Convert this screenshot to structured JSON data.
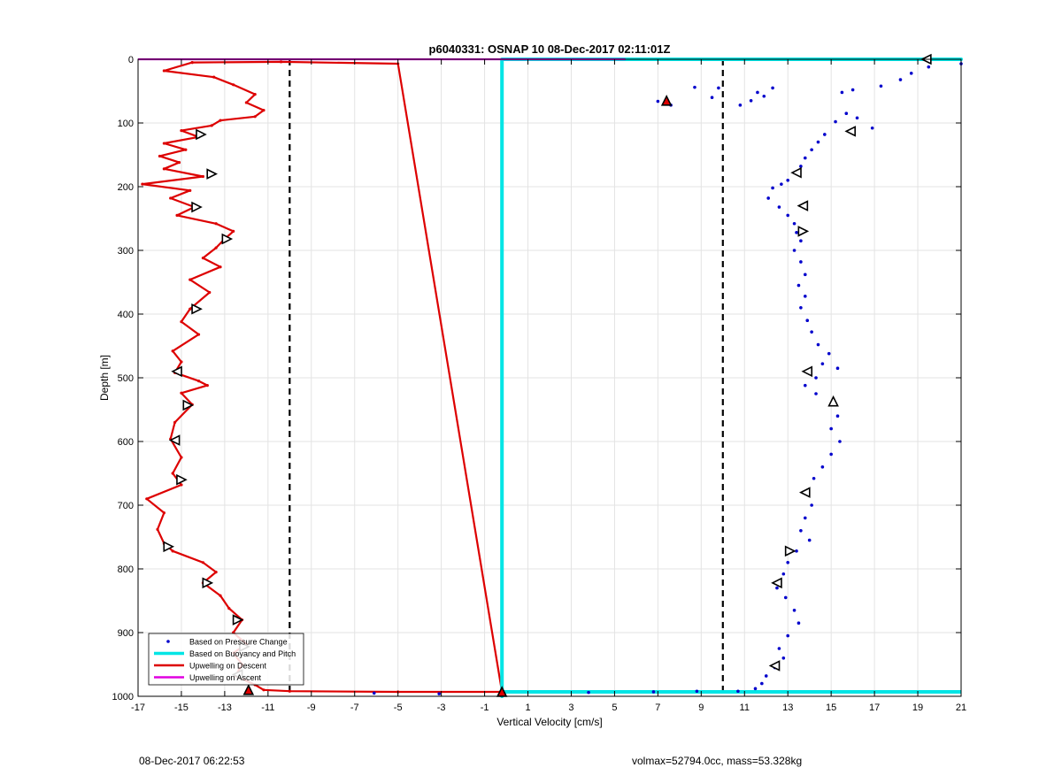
{
  "chart_data": {
    "type": "scatter",
    "title": "p6040331: OSNAP 10 08-Dec-2017 02:11:01Z",
    "xlabel": "Vertical Velocity [cm/s]",
    "ylabel": "Depth [m]",
    "xlim": [
      -17,
      21
    ],
    "ylim": [
      0,
      1000
    ],
    "y_reversed": true,
    "grid": true,
    "legend_position": "bottom-left",
    "x_ticks": [
      "-17",
      "-15",
      "-13",
      "-11",
      "-9",
      "-7",
      "-5",
      "-3",
      "-1",
      "1",
      "3",
      "5",
      "7",
      "9",
      "11",
      "13",
      "15",
      "17",
      "19",
      "21"
    ],
    "y_ticks": [
      "0",
      "100",
      "200",
      "300",
      "400",
      "500",
      "600",
      "700",
      "800",
      "900",
      "1000"
    ],
    "reference_lines": [
      {
        "x": -10,
        "style": "dashed",
        "color": "#000000"
      },
      {
        "x": 10,
        "style": "dashed",
        "color": "#000000"
      }
    ],
    "series": [
      {
        "name": "Based on Pressure Change",
        "kind": "points",
        "color": "#0000cc",
        "points": [
          [
            21.0,
            7
          ],
          [
            19.5,
            12
          ],
          [
            18.7,
            22
          ],
          [
            18.2,
            32
          ],
          [
            17.3,
            42
          ],
          [
            16.0,
            48
          ],
          [
            15.5,
            52
          ],
          [
            12.3,
            45
          ],
          [
            11.6,
            52
          ],
          [
            11.9,
            58
          ],
          [
            11.3,
            65
          ],
          [
            10.8,
            72
          ],
          [
            9.8,
            45
          ],
          [
            9.5,
            60
          ],
          [
            8.7,
            44
          ],
          [
            7.6,
            72
          ],
          [
            7.0,
            66
          ],
          [
            16.9,
            108
          ],
          [
            16.2,
            92
          ],
          [
            15.7,
            85
          ],
          [
            15.2,
            98
          ],
          [
            14.7,
            118
          ],
          [
            14.4,
            130
          ],
          [
            14.1,
            142
          ],
          [
            13.8,
            155
          ],
          [
            13.6,
            168
          ],
          [
            13.3,
            178
          ],
          [
            13.0,
            190
          ],
          [
            12.7,
            196
          ],
          [
            12.3,
            202
          ],
          [
            12.1,
            218
          ],
          [
            12.6,
            232
          ],
          [
            13.0,
            245
          ],
          [
            13.3,
            258
          ],
          [
            13.4,
            272
          ],
          [
            13.6,
            285
          ],
          [
            13.3,
            300
          ],
          [
            13.6,
            318
          ],
          [
            13.8,
            338
          ],
          [
            13.5,
            355
          ],
          [
            13.8,
            372
          ],
          [
            13.6,
            390
          ],
          [
            13.9,
            410
          ],
          [
            14.1,
            428
          ],
          [
            14.4,
            448
          ],
          [
            14.9,
            462
          ],
          [
            14.6,
            478
          ],
          [
            15.3,
            485
          ],
          [
            14.3,
            500
          ],
          [
            13.8,
            512
          ],
          [
            14.3,
            525
          ],
          [
            15.1,
            540
          ],
          [
            15.3,
            560
          ],
          [
            15.0,
            580
          ],
          [
            15.4,
            600
          ],
          [
            15.0,
            620
          ],
          [
            14.6,
            640
          ],
          [
            14.2,
            658
          ],
          [
            13.9,
            680
          ],
          [
            14.1,
            700
          ],
          [
            13.8,
            720
          ],
          [
            13.6,
            740
          ],
          [
            14.0,
            755
          ],
          [
            13.4,
            772
          ],
          [
            13.0,
            790
          ],
          [
            12.8,
            808
          ],
          [
            12.5,
            830
          ],
          [
            12.9,
            845
          ],
          [
            13.3,
            865
          ],
          [
            13.5,
            885
          ],
          [
            13.0,
            905
          ],
          [
            12.6,
            925
          ],
          [
            12.8,
            940
          ],
          [
            12.4,
            955
          ],
          [
            12.0,
            968
          ],
          [
            11.8,
            980
          ],
          [
            11.5,
            988
          ],
          [
            10.7,
            992
          ],
          [
            8.8,
            992
          ],
          [
            6.8,
            993
          ],
          [
            3.8,
            994
          ],
          [
            -0.2,
            995
          ],
          [
            -3.1,
            996
          ],
          [
            -6.1,
            995
          ]
        ]
      },
      {
        "name": "Based on Buoyancy and Pitch",
        "kind": "line",
        "color": "#00e5e5",
        "points": [
          [
            5.5,
            0
          ],
          [
            21,
            0
          ],
          [
            -0.2,
            0
          ],
          [
            -0.2,
            1000
          ],
          [
            -0.2,
            993
          ],
          [
            21,
            993
          ]
        ]
      },
      {
        "name": "Upwelling on Descent",
        "kind": "line",
        "color": "#dd0000",
        "points": [
          [
            -14.5,
            5
          ],
          [
            -15.8,
            18
          ],
          [
            -13.5,
            28
          ],
          [
            -12.6,
            40
          ],
          [
            -11.6,
            55
          ],
          [
            -12.0,
            68
          ],
          [
            -11.2,
            80
          ],
          [
            -11.6,
            90
          ],
          [
            -13.2,
            96
          ],
          [
            -13.6,
            104
          ],
          [
            -15.0,
            112
          ],
          [
            -14.2,
            122
          ],
          [
            -15.8,
            132
          ],
          [
            -14.8,
            142
          ],
          [
            -16.0,
            152
          ],
          [
            -15.1,
            162
          ],
          [
            -15.8,
            172
          ],
          [
            -14.0,
            184
          ],
          [
            -16.8,
            196
          ],
          [
            -14.6,
            206
          ],
          [
            -15.5,
            218
          ],
          [
            -14.4,
            232
          ],
          [
            -15.2,
            245
          ],
          [
            -13.4,
            258
          ],
          [
            -12.6,
            270
          ],
          [
            -13.0,
            282
          ],
          [
            -13.4,
            296
          ],
          [
            -14.0,
            312
          ],
          [
            -13.2,
            326
          ],
          [
            -14.6,
            346
          ],
          [
            -13.7,
            366
          ],
          [
            -14.6,
            392
          ],
          [
            -15.0,
            412
          ],
          [
            -14.2,
            432
          ],
          [
            -15.4,
            458
          ],
          [
            -15.0,
            475
          ],
          [
            -15.3,
            492
          ],
          [
            -14.2,
            505
          ],
          [
            -13.8,
            512
          ],
          [
            -15.0,
            524
          ],
          [
            -14.5,
            542
          ],
          [
            -15.3,
            570
          ],
          [
            -15.5,
            596
          ],
          [
            -15.0,
            625
          ],
          [
            -15.4,
            650
          ],
          [
            -15.0,
            668
          ],
          [
            -16.6,
            690
          ],
          [
            -15.8,
            712
          ],
          [
            -16.1,
            738
          ],
          [
            -15.8,
            760
          ],
          [
            -15.4,
            772
          ],
          [
            -14.0,
            790
          ],
          [
            -13.4,
            805
          ],
          [
            -14.0,
            822
          ],
          [
            -13.2,
            842
          ],
          [
            -12.8,
            862
          ],
          [
            -12.2,
            880
          ],
          [
            -12.6,
            900
          ],
          [
            -12.0,
            918
          ],
          [
            -12.6,
            932
          ],
          [
            -12.2,
            950
          ],
          [
            -12.5,
            968
          ],
          [
            -11.6,
            982
          ],
          [
            -11.2,
            990
          ],
          [
            -10.0,
            992
          ],
          [
            -5.0,
            993
          ],
          [
            -0.2,
            993
          ],
          [
            -5.0,
            7
          ],
          [
            -10.4,
            4
          ],
          [
            -14.5,
            5
          ]
        ]
      },
      {
        "name": "Upwelling on Ascent",
        "kind": "line",
        "color": "#e000e0",
        "points": [
          [
            -17,
            0
          ],
          [
            5.5,
            0
          ]
        ]
      }
    ],
    "markers": [
      {
        "x": 19.4,
        "y": 0,
        "dir": "left"
      },
      {
        "x": 7.4,
        "y": 65,
        "dir": "up",
        "fill": "#dd0000"
      },
      {
        "x": 15.9,
        "y": 113,
        "dir": "left"
      },
      {
        "x": 13.4,
        "y": 178,
        "dir": "left"
      },
      {
        "x": 13.7,
        "y": 230,
        "dir": "left"
      },
      {
        "x": 13.7,
        "y": 270,
        "dir": "right"
      },
      {
        "x": 13.9,
        "y": 490,
        "dir": "left"
      },
      {
        "x": 15.1,
        "y": 537,
        "dir": "up"
      },
      {
        "x": 13.8,
        "y": 680,
        "dir": "left"
      },
      {
        "x": 13.1,
        "y": 772,
        "dir": "right"
      },
      {
        "x": 12.5,
        "y": 822,
        "dir": "left"
      },
      {
        "x": 12.4,
        "y": 952,
        "dir": "left"
      },
      {
        "x": -0.2,
        "y": 993,
        "dir": "up",
        "fill": "#dd0000"
      },
      {
        "x": -14.1,
        "y": 118,
        "dir": "right"
      },
      {
        "x": -13.6,
        "y": 180,
        "dir": "right"
      },
      {
        "x": -14.3,
        "y": 232,
        "dir": "right"
      },
      {
        "x": -12.9,
        "y": 282,
        "dir": "right"
      },
      {
        "x": -14.3,
        "y": 392,
        "dir": "right"
      },
      {
        "x": -15.2,
        "y": 490,
        "dir": "left"
      },
      {
        "x": -14.7,
        "y": 543,
        "dir": "right"
      },
      {
        "x": -15.3,
        "y": 598,
        "dir": "left"
      },
      {
        "x": -15.0,
        "y": 660,
        "dir": "right"
      },
      {
        "x": -15.6,
        "y": 765,
        "dir": "right"
      },
      {
        "x": -13.8,
        "y": 822,
        "dir": "right"
      },
      {
        "x": -12.4,
        "y": 880,
        "dir": "right"
      },
      {
        "x": -12.1,
        "y": 922,
        "dir": "right"
      },
      {
        "x": -12.4,
        "y": 966,
        "dir": "left"
      },
      {
        "x": -11.9,
        "y": 990,
        "dir": "up",
        "fill": "#dd0000"
      }
    ]
  },
  "footer": {
    "timestamp": "08-Dec-2017 06:22:53",
    "info": "volmax=52794.0cc, mass=53.328kg"
  }
}
